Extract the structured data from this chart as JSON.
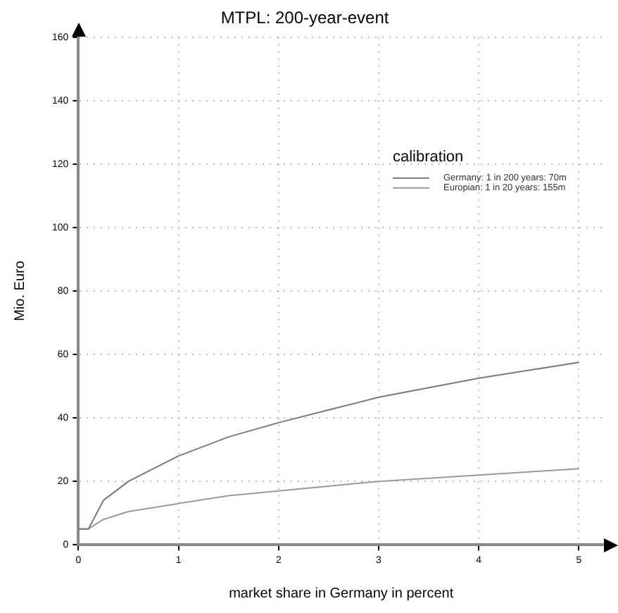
{
  "chart_data": {
    "type": "line",
    "title": "MTPL: 200-year-event",
    "xlabel": "market share in Germany in percent",
    "ylabel": "Mio. Euro",
    "legend_title": "calibration",
    "series": [
      {
        "name": "Germany: 1 in 200 years: 70m",
        "color": "#7a7a7a",
        "x": [
          0,
          0.1,
          0.25,
          0.5,
          1,
          1.5,
          2,
          2.5,
          3,
          3.5,
          4,
          4.5,
          5
        ],
        "values": [
          5,
          5,
          14,
          20,
          28,
          34,
          38.5,
          42.5,
          46.5,
          49.5,
          52.5,
          55,
          57.5
        ]
      },
      {
        "name": "Europian: 1 in 20 years: 155m",
        "color": "#9a9a9a",
        "x": [
          0,
          0.1,
          0.25,
          0.5,
          1,
          1.5,
          2,
          2.5,
          3,
          3.5,
          4,
          4.5,
          5
        ],
        "values": [
          5,
          5,
          8,
          10.5,
          13,
          15.5,
          17,
          18.5,
          20,
          21,
          22,
          23,
          24
        ]
      }
    ],
    "xlim": [
      0,
      5.25
    ],
    "xticks": [
      0,
      1,
      2,
      3,
      4,
      5
    ],
    "ylim": [
      0,
      160
    ],
    "yticks": [
      0,
      20,
      40,
      60,
      80,
      100,
      120,
      140,
      160
    ],
    "grid": true,
    "legend": "right",
    "marker": "none",
    "line_style": "solid"
  }
}
